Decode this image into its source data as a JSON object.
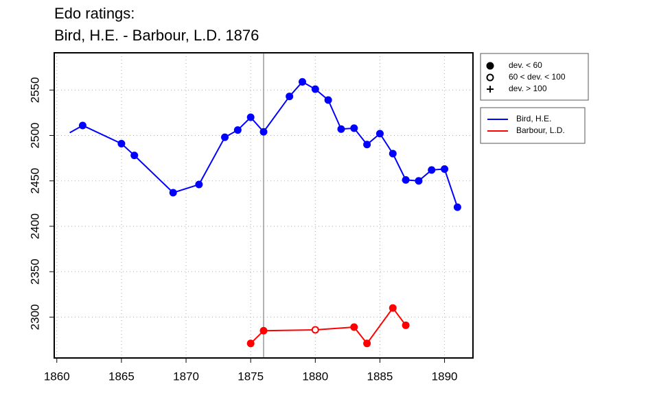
{
  "chart_data": {
    "type": "line",
    "title": [
      "Edo ratings:",
      "Bird, H.E. - Barbour, L.D. 1876"
    ],
    "xlim": [
      1859.8,
      1892.2
    ],
    "xticks": [
      1860,
      1865,
      1870,
      1875,
      1880,
      1885,
      1890
    ],
    "ylim": [
      2255,
      2591
    ],
    "yticks": [
      2300,
      2350,
      2400,
      2450,
      2500,
      2550
    ],
    "grid": true,
    "vline": 1876,
    "vline_color": "#999999",
    "series": [
      {
        "name": "Bird, H.E.",
        "color": "#0000ff",
        "x": [
          1861,
          1862,
          1865,
          1866,
          1869,
          1871,
          1873,
          1874,
          1875,
          1876,
          1878,
          1879,
          1880,
          1881,
          1882,
          1883,
          1884,
          1885,
          1886,
          1887,
          1888,
          1889,
          1890,
          1891
        ],
        "values": [
          2503,
          2511,
          2491,
          2478,
          2437,
          2446,
          2498,
          2506,
          2520,
          2504,
          2543,
          2559,
          2551,
          2539,
          2507,
          2508,
          2490,
          2502,
          2480,
          2451,
          2450,
          2462,
          2463,
          2421
        ],
        "markers": [
          "none",
          "filled",
          "filled",
          "filled",
          "filled",
          "filled",
          "filled",
          "filled",
          "filled",
          "filled",
          "filled",
          "filled",
          "filled",
          "filled",
          "filled",
          "filled",
          "filled",
          "filled",
          "filled",
          "filled",
          "filled",
          "filled",
          "filled",
          "filled"
        ]
      },
      {
        "name": "Barbour, L.D.",
        "color": "#ff0000",
        "x": [
          1875,
          1876,
          1880,
          1883,
          1884,
          1886,
          1887
        ],
        "values": [
          2271,
          2285,
          2286,
          2289,
          2271,
          2310,
          2291
        ],
        "markers": [
          "filled",
          "filled",
          "open",
          "filled",
          "filled",
          "filled",
          "filled"
        ]
      }
    ],
    "marker_legend": [
      {
        "label": "dev. < 60",
        "marker": "filled"
      },
      {
        "label": "60 < dev. < 100",
        "marker": "open"
      },
      {
        "label": "dev. > 100",
        "marker": "plus"
      }
    ]
  }
}
